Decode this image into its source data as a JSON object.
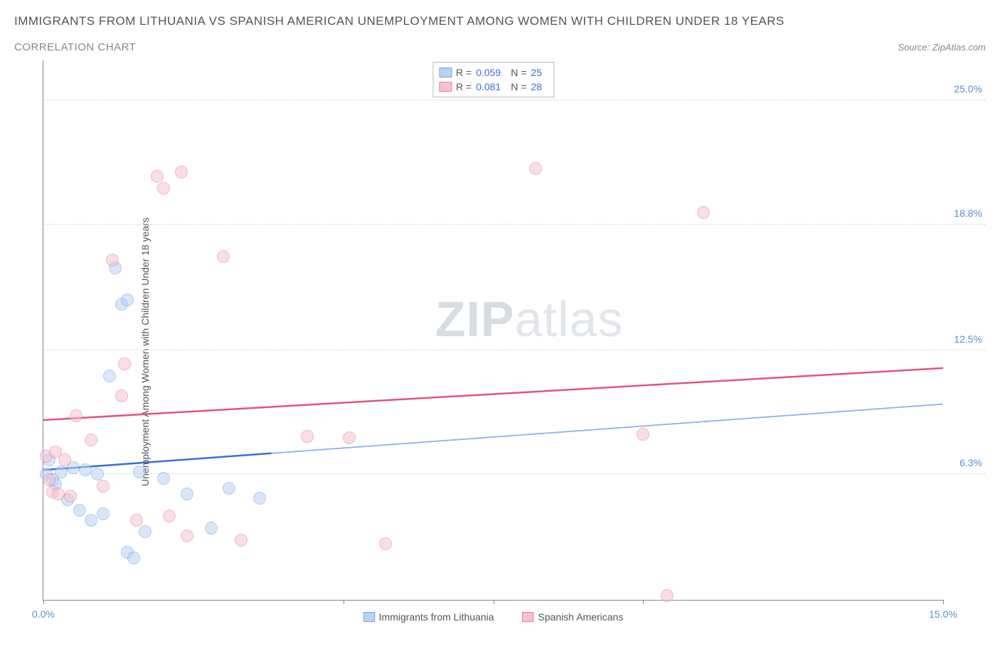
{
  "title": "IMMIGRANTS FROM LITHUANIA VS SPANISH AMERICAN UNEMPLOYMENT AMONG WOMEN WITH CHILDREN UNDER 18 YEARS",
  "subtitle": "CORRELATION CHART",
  "source": "Source: ZipAtlas.com",
  "y_axis_label": "Unemployment Among Women with Children Under 18 years",
  "watermark": {
    "part1": "ZIP",
    "part2": "atlas"
  },
  "chart": {
    "type": "scatter",
    "xlim": [
      0,
      15
    ],
    "ylim": [
      0,
      27
    ],
    "x_ticks": [
      0,
      5,
      7.5,
      10,
      15
    ],
    "x_tick_labels": {
      "0": "0.0%",
      "15": "15.0%"
    },
    "y_ticks": [
      6.3,
      12.5,
      18.8,
      25.0
    ],
    "y_tick_labels": [
      "6.3%",
      "12.5%",
      "18.8%",
      "25.0%"
    ],
    "grid_color": "#dddddd",
    "axis_color": "#888888",
    "background_color": "#ffffff",
    "point_radius": 9,
    "point_opacity": 0.55,
    "series": [
      {
        "name": "Immigrants from Lithuania",
        "stroke": "#6fa3e8",
        "fill": "#b9d2f3",
        "R": 0.059,
        "N": 25,
        "trend": {
          "x1": 0,
          "y1": 6.5,
          "x2": 15,
          "y2": 9.8,
          "dash_after_x": 3.8,
          "color": "#3b6fd6"
        },
        "points": [
          [
            0.05,
            6.3
          ],
          [
            0.1,
            7.0
          ],
          [
            0.15,
            6.0
          ],
          [
            0.2,
            5.8
          ],
          [
            0.3,
            6.4
          ],
          [
            0.4,
            5.0
          ],
          [
            0.5,
            6.6
          ],
          [
            0.6,
            4.5
          ],
          [
            0.7,
            6.5
          ],
          [
            0.8,
            4.0
          ],
          [
            0.9,
            6.3
          ],
          [
            1.0,
            4.3
          ],
          [
            1.1,
            11.2
          ],
          [
            1.2,
            16.6
          ],
          [
            1.3,
            14.8
          ],
          [
            1.4,
            15.0
          ],
          [
            1.4,
            2.4
          ],
          [
            1.5,
            2.1
          ],
          [
            1.6,
            6.4
          ],
          [
            1.7,
            3.4
          ],
          [
            2.0,
            6.1
          ],
          [
            2.4,
            5.3
          ],
          [
            2.8,
            3.6
          ],
          [
            3.1,
            5.6
          ],
          [
            3.6,
            5.1
          ]
        ]
      },
      {
        "name": "Spanish Americans",
        "stroke": "#e87f9c",
        "fill": "#f6c2d1",
        "R": 0.081,
        "N": 28,
        "trend": {
          "x1": 0,
          "y1": 9.0,
          "x2": 15,
          "y2": 11.6,
          "dash_after_x": null,
          "color": "#e2557b"
        },
        "points": [
          [
            0.05,
            7.2
          ],
          [
            0.1,
            6.0
          ],
          [
            0.15,
            5.4
          ],
          [
            0.2,
            7.4
          ],
          [
            0.25,
            5.3
          ],
          [
            0.35,
            7.0
          ],
          [
            0.45,
            5.2
          ],
          [
            0.55,
            9.2
          ],
          [
            0.8,
            8.0
          ],
          [
            1.0,
            5.7
          ],
          [
            1.15,
            17.0
          ],
          [
            1.3,
            10.2
          ],
          [
            1.35,
            11.8
          ],
          [
            1.55,
            4.0
          ],
          [
            1.9,
            21.2
          ],
          [
            2.0,
            20.6
          ],
          [
            2.1,
            4.2
          ],
          [
            2.3,
            21.4
          ],
          [
            2.4,
            3.2
          ],
          [
            3.0,
            17.2
          ],
          [
            3.3,
            3.0
          ],
          [
            4.4,
            8.2
          ],
          [
            5.1,
            8.1
          ],
          [
            5.7,
            2.8
          ],
          [
            8.2,
            21.6
          ],
          [
            10.0,
            8.3
          ],
          [
            10.4,
            0.2
          ],
          [
            11.0,
            19.4
          ]
        ]
      }
    ]
  },
  "legend_top": {
    "rows": [
      {
        "swatch_fill": "#b9d2f3",
        "swatch_stroke": "#6fa3e8",
        "r_label": "R =",
        "r_val": "0.059",
        "n_label": "N =",
        "n_val": "25"
      },
      {
        "swatch_fill": "#f6c2d1",
        "swatch_stroke": "#e87f9c",
        "r_label": "R =",
        "r_val": "0.081",
        "n_label": "N =",
        "n_val": "28"
      }
    ]
  },
  "legend_bottom": {
    "items": [
      {
        "swatch_fill": "#b9d2f3",
        "swatch_stroke": "#6fa3e8",
        "label": "Immigrants from Lithuania"
      },
      {
        "swatch_fill": "#f6c2d1",
        "swatch_stroke": "#e87f9c",
        "label": "Spanish Americans"
      }
    ]
  }
}
